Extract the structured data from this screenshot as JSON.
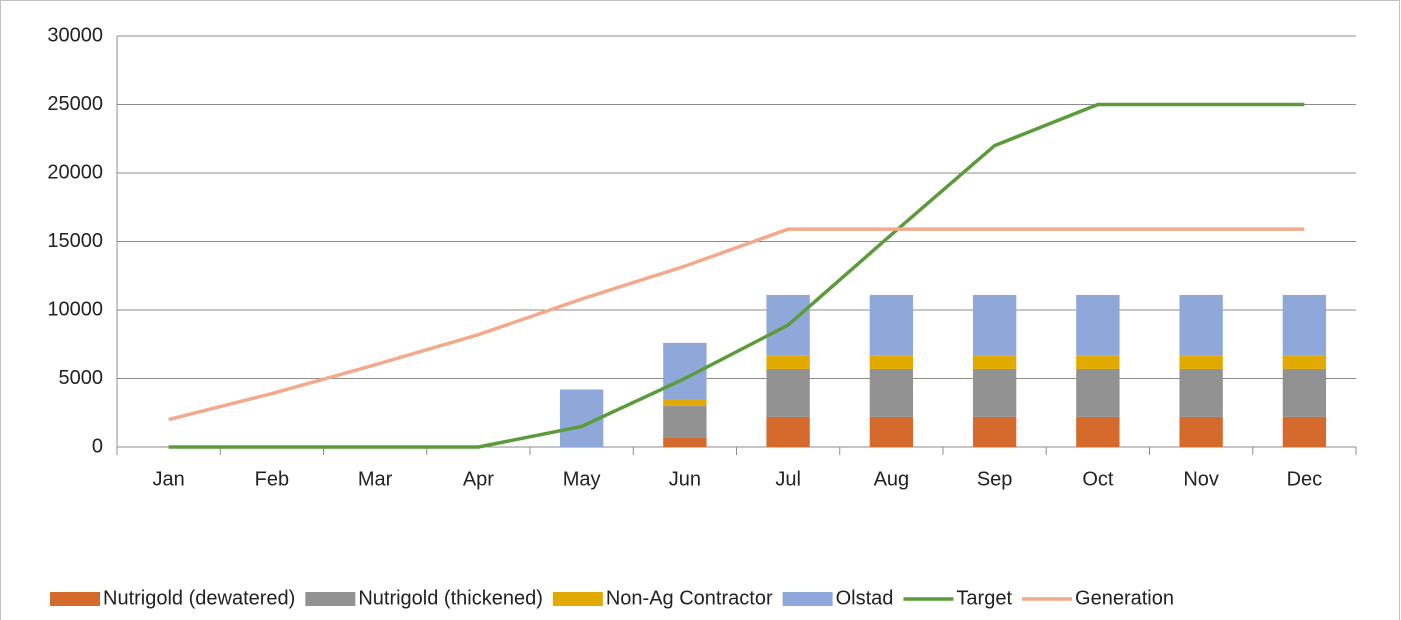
{
  "chart_data": {
    "type": "bar",
    "categories": [
      "Jan",
      "Feb",
      "Mar",
      "Apr",
      "May",
      "Jun",
      "Jul",
      "Aug",
      "Sep",
      "Oct",
      "Nov",
      "Dec"
    ],
    "series": [
      {
        "name": "Nutrigold (dewatered)",
        "color": "#d46b2c",
        "values": [
          0,
          0,
          0,
          0,
          0,
          700,
          2200,
          2200,
          2200,
          2200,
          2200,
          2200
        ]
      },
      {
        "name": "Nutrigold (thickened)",
        "color": "#929292",
        "values": [
          0,
          0,
          0,
          0,
          0,
          2300,
          3500,
          3500,
          3500,
          3500,
          3500,
          3500
        ]
      },
      {
        "name": "Non-Ag Contractor",
        "color": "#e2aa00",
        "values": [
          0,
          0,
          0,
          0,
          0,
          500,
          1000,
          1000,
          1000,
          1000,
          1000,
          1000
        ]
      },
      {
        "name": "Olstad",
        "color": "#90a8d9",
        "values": [
          0,
          0,
          0,
          0,
          4200,
          4100,
          4400,
          4400,
          4400,
          4400,
          4400,
          4400
        ]
      },
      {
        "name": "Target",
        "type": "line",
        "color": "#5b9b3b",
        "values": [
          0,
          0,
          0,
          0,
          1500,
          5000,
          8900,
          15500,
          22000,
          25000,
          25000,
          25000
        ]
      },
      {
        "name": "Generation",
        "type": "line",
        "color": "#f3a98b",
        "values": [
          2000,
          3900,
          6000,
          8200,
          10800,
          13200,
          15900,
          15900,
          15900,
          15900,
          15900,
          15900
        ]
      }
    ],
    "ylim": [
      0,
      30000
    ],
    "yticks": [
      0,
      5000,
      10000,
      15000,
      20000,
      25000,
      30000
    ],
    "grid": true,
    "stacked": true,
    "legend": "bottom"
  }
}
